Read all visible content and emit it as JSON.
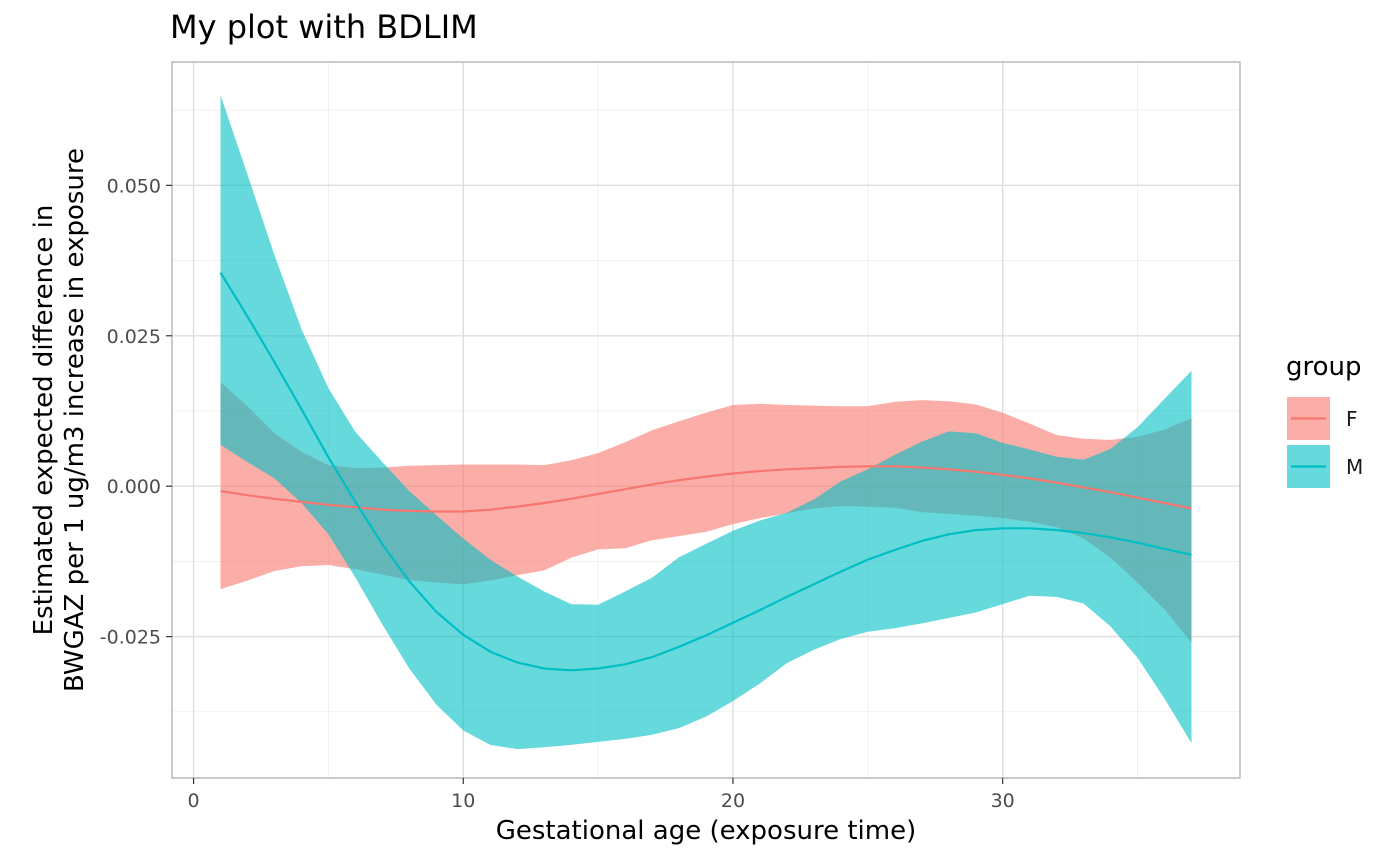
{
  "chart_data": {
    "type": "line",
    "title": "My plot with BDLIM",
    "xlabel": "Gestational age (exposure time)",
    "ylabel_lines": [
      "Estimated expected difference in",
      "BWGAZ per 1 ug/m3 increase in exposure"
    ],
    "xlim": [
      -0.8,
      38.8
    ],
    "ylim": [
      -0.0485,
      0.0705
    ],
    "x_ticks": [
      0,
      10,
      20,
      30
    ],
    "x_tick_labels": [
      "0",
      "10",
      "20",
      "30"
    ],
    "y_ticks": [
      -0.025,
      0,
      0.025,
      0.05
    ],
    "y_tick_labels": [
      "-0.025",
      "0.000",
      "0.025",
      "0.050"
    ],
    "grid": true,
    "legend": {
      "title": "group",
      "position": "right"
    },
    "x": [
      1,
      2,
      3,
      4,
      5,
      6,
      7,
      8,
      9,
      10,
      11,
      12,
      13,
      14,
      15,
      16,
      17,
      18,
      19,
      20,
      21,
      22,
      23,
      24,
      25,
      26,
      27,
      28,
      29,
      30,
      31,
      32,
      33,
      34,
      35,
      36,
      37
    ],
    "series": [
      {
        "name": "F",
        "color": "#F8766D",
        "fill": "#F8766D",
        "values": [
          -0.0008,
          -0.0015,
          -0.0021,
          -0.0026,
          -0.0031,
          -0.0035,
          -0.0039,
          -0.0041,
          -0.0042,
          -0.0042,
          -0.0039,
          -0.0034,
          -0.0028,
          -0.0021,
          -0.0013,
          -0.0005,
          0.0003,
          0.001,
          0.0016,
          0.0021,
          0.0025,
          0.0028,
          0.003,
          0.0032,
          0.0033,
          0.0033,
          0.0031,
          0.0028,
          0.0024,
          0.0019,
          0.0013,
          0.0006,
          -0.0002,
          -0.001,
          -0.0019,
          -0.0028,
          -0.0037
        ],
        "lower": [
          -0.0171,
          -0.0157,
          -0.0141,
          -0.0133,
          -0.0131,
          -0.0138,
          -0.0147,
          -0.0156,
          -0.016,
          -0.0163,
          -0.0157,
          -0.0148,
          -0.014,
          -0.0119,
          -0.0105,
          -0.0103,
          -0.009,
          -0.0083,
          -0.0076,
          -0.0063,
          -0.0053,
          -0.0045,
          -0.0037,
          -0.0033,
          -0.0034,
          -0.0036,
          -0.0043,
          -0.0046,
          -0.0049,
          -0.0053,
          -0.0059,
          -0.0068,
          -0.0087,
          -0.0119,
          -0.016,
          -0.0205,
          -0.026
        ],
        "upper": [
          0.0173,
          0.0133,
          0.0088,
          0.0057,
          0.0035,
          0.003,
          0.0031,
          0.0034,
          0.0035,
          0.0036,
          0.0036,
          0.0036,
          0.0035,
          0.0043,
          0.0055,
          0.0073,
          0.0093,
          0.0108,
          0.0122,
          0.0135,
          0.0137,
          0.0135,
          0.0134,
          0.0133,
          0.0133,
          0.014,
          0.0143,
          0.0141,
          0.0136,
          0.0122,
          0.0104,
          0.0085,
          0.0079,
          0.0077,
          0.0082,
          0.0094,
          0.0113
        ]
      },
      {
        "name": "M",
        "color": "#00BFC4",
        "fill": "#00BFC4",
        "values": [
          0.0355,
          0.0282,
          0.0206,
          0.0128,
          0.0048,
          -0.0026,
          -0.0097,
          -0.0158,
          -0.0209,
          -0.0247,
          -0.0275,
          -0.0293,
          -0.0303,
          -0.0306,
          -0.0303,
          -0.0296,
          -0.0284,
          -0.0267,
          -0.0248,
          -0.0227,
          -0.0206,
          -0.0184,
          -0.0163,
          -0.0142,
          -0.0122,
          -0.0106,
          -0.0091,
          -0.008,
          -0.0073,
          -0.007,
          -0.007,
          -0.0073,
          -0.0078,
          -0.0085,
          -0.0094,
          -0.0104,
          -0.0114
        ],
        "lower": [
          0.0069,
          0.004,
          0.0013,
          -0.0028,
          -0.008,
          -0.0152,
          -0.023,
          -0.0303,
          -0.0363,
          -0.0406,
          -0.043,
          -0.0437,
          -0.0434,
          -0.043,
          -0.0425,
          -0.042,
          -0.0413,
          -0.0402,
          -0.0383,
          -0.0357,
          -0.0328,
          -0.0294,
          -0.0272,
          -0.0254,
          -0.0242,
          -0.0236,
          -0.0228,
          -0.0219,
          -0.021,
          -0.0196,
          -0.0182,
          -0.0184,
          -0.0195,
          -0.0233,
          -0.0285,
          -0.0353,
          -0.0427
        ],
        "upper": [
          0.065,
          0.0518,
          0.0384,
          0.0261,
          0.0163,
          0.009,
          0.004,
          -0.0008,
          -0.0048,
          -0.0087,
          -0.0122,
          -0.015,
          -0.0175,
          -0.0196,
          -0.0197,
          -0.0175,
          -0.0152,
          -0.0118,
          -0.0096,
          -0.0074,
          -0.0057,
          -0.0044,
          -0.0022,
          0.0008,
          0.0028,
          0.0052,
          0.0074,
          0.0091,
          0.0088,
          0.0072,
          0.0061,
          0.0049,
          0.0044,
          0.0062,
          0.0098,
          0.0145,
          0.0192
        ]
      }
    ]
  }
}
